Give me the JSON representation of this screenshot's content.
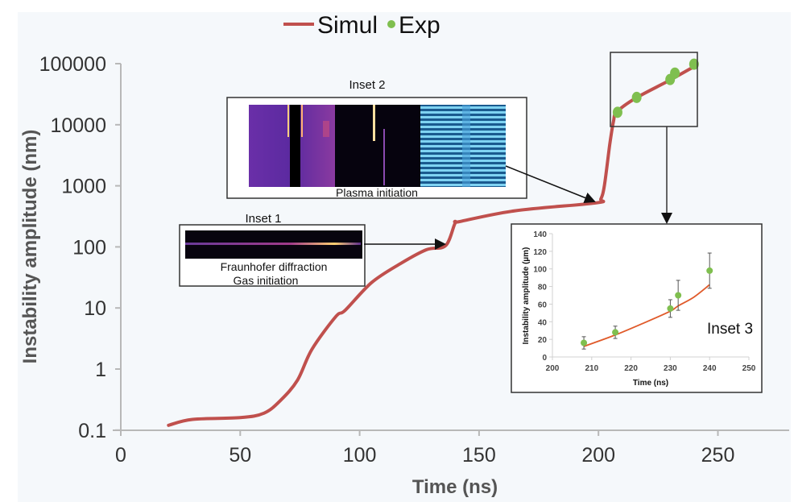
{
  "chart_data": {
    "type": "line",
    "title": "",
    "xlabel": "Time (ns)",
    "ylabel": "Instability amplitude (nm)",
    "xlim": [
      0,
      280
    ],
    "ylim": [
      0.1,
      100000
    ],
    "yscale": "log",
    "grid": false,
    "legend_position": "top-center",
    "x_ticks": [
      "0",
      "50",
      "100",
      "150",
      "200",
      "250"
    ],
    "x_tick_values": [
      0,
      50,
      100,
      150,
      200,
      250
    ],
    "y_ticks": [
      "0.1",
      "1",
      "10",
      "100",
      "1000",
      "10000",
      "100000"
    ],
    "y_tick_values": [
      0.1,
      1,
      10,
      100,
      1000,
      10000,
      100000
    ],
    "colors": {
      "simul": "#c0504d",
      "exp": "#7fbf4f",
      "background": "#f5f8fb"
    },
    "series": [
      {
        "name": "Simul",
        "kind": "line",
        "x": [
          20,
          30,
          50,
          60,
          67,
          74,
          80,
          90,
          94,
          105,
          117,
          128,
          136,
          140,
          142,
          165,
          199,
          201,
          202.5,
          204.7,
          206.3,
          207.7,
          215.4,
          229.6,
          239.7
        ],
        "y": [
          0.12,
          0.15,
          0.16,
          0.19,
          0.31,
          0.66,
          2.1,
          7.2,
          9.2,
          26,
          53,
          90,
          105,
          245,
          260,
          390,
          525,
          610,
          1020,
          4660,
          11500,
          16200,
          27000,
          53000,
          88000
        ]
      },
      {
        "name": "Exp",
        "kind": "scatter",
        "x": [
          208,
          216,
          230,
          232,
          240
        ],
        "y": [
          16000,
          28000,
          55000,
          70000,
          98000
        ]
      }
    ],
    "insets": [
      {
        "title": "Inset 1",
        "captions": [
          "Fraunhofer diffraction",
          "Gas initiation"
        ],
        "points_to": {
          "x": 136,
          "y": 105
        }
      },
      {
        "title": "Inset 2",
        "captions": [
          "Plasma initiation"
        ],
        "points_to": {
          "x": 199,
          "y": 525
        }
      },
      {
        "title": "Inset 3",
        "type": "scatter+line",
        "xlabel": "Time (ns)",
        "ylabel": "Instability amplitude (µm)",
        "xlim": [
          200,
          250
        ],
        "ylim": [
          0,
          140
        ],
        "x_ticks": [
          "200",
          "210",
          "220",
          "230",
          "240",
          "250"
        ],
        "x_tick_values": [
          200,
          210,
          220,
          230,
          240,
          250
        ],
        "y_ticks": [
          "0",
          "20",
          "40",
          "60",
          "80",
          "100",
          "120",
          "140"
        ],
        "y_tick_values": [
          0,
          20,
          40,
          60,
          80,
          100,
          120,
          140
        ],
        "series": [
          {
            "name": "Simul",
            "x": [
              208,
              216,
              224,
              230,
              232,
              236,
              240
            ],
            "y": [
              12,
              25,
              40,
              52,
              58,
              68,
              82
            ]
          },
          {
            "name": "Exp",
            "x": [
              208,
              216,
              230,
              232,
              240
            ],
            "y": [
              16,
              28,
              55,
              70,
              98
            ],
            "err": [
              7,
              7,
              10,
              17,
              20
            ]
          }
        ]
      }
    ]
  },
  "legend": {
    "simul_label": "Simul",
    "exp_label": "Exp"
  }
}
